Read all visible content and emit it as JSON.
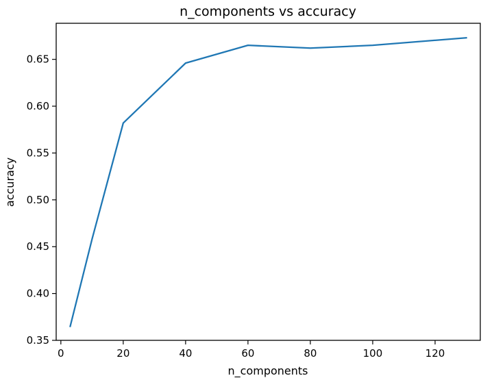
{
  "chart_data": {
    "type": "line",
    "title": "n_components vs accuracy",
    "xlabel": "n_components",
    "ylabel": "accuracy",
    "xlim": [
      -1.5,
      134.5
    ],
    "ylim": [
      0.35,
      0.6885
    ],
    "xticks": [
      0,
      20,
      40,
      60,
      80,
      100,
      120
    ],
    "yticks": [
      0.35,
      0.4,
      0.45,
      0.5,
      0.55,
      0.6,
      0.65
    ],
    "ytick_labels": [
      "0.35",
      "0.40",
      "0.45",
      "0.50",
      "0.55",
      "0.60",
      "0.65"
    ],
    "grid": false,
    "series": [
      {
        "color": "#1f77b4",
        "x": [
          3,
          10,
          20,
          40,
          60,
          80,
          100,
          130
        ],
        "y": [
          0.365,
          0.458,
          0.582,
          0.646,
          0.665,
          0.662,
          0.665,
          0.673
        ]
      }
    ]
  }
}
